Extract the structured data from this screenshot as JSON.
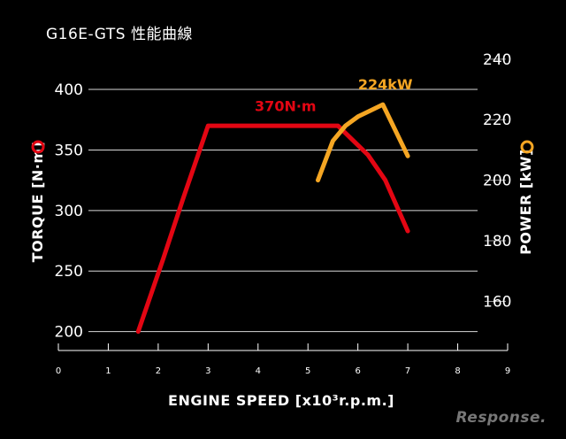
{
  "title": "G16E-GTS 性能曲線",
  "watermark": "Response.",
  "chart_data": {
    "type": "line",
    "xlabel": "ENGINE SPEED [x10³r.p.m.]",
    "ylabel_left": "TORQUE [N·m]",
    "ylabel_right": "POWER [kW]",
    "xlim": [
      0,
      9
    ],
    "ylim_left": [
      180,
      430
    ],
    "ylim_right": [
      142,
      242
    ],
    "x_ticks": [
      "0",
      "1",
      "2",
      "3",
      "4",
      "5",
      "6",
      "7",
      "8",
      "9"
    ],
    "y_left_ticks": [
      "200",
      "250",
      "300",
      "350",
      "400"
    ],
    "y_right_ticks": [
      "160",
      "180",
      "200",
      "220",
      "240"
    ],
    "series": [
      {
        "axis": "left",
        "color": "#e30613",
        "marker_color": "#e30613",
        "x": [
          1.6,
          2.1,
          2.5,
          3.0,
          4.0,
          5.0,
          5.6,
          6.2,
          6.55,
          7.0
        ],
        "y": [
          200,
          260,
          310,
          370,
          370,
          370,
          370,
          346,
          325,
          283
        ]
      },
      {
        "axis": "right",
        "color": "#f5a623",
        "marker_color": "#f5a623",
        "x": [
          5.2,
          5.5,
          5.75,
          6.0,
          6.5,
          7.0
        ],
        "y": [
          200,
          213,
          218,
          221,
          225,
          208
        ]
      }
    ],
    "annotations": [
      {
        "text": "370N·m",
        "x": 4.55,
        "y": 382,
        "axis": "left",
        "color": "#e30613"
      },
      {
        "text": "224kW",
        "x": 6.55,
        "y": 230,
        "axis": "right",
        "color": "#f5a623"
      }
    ],
    "grid": true
  }
}
